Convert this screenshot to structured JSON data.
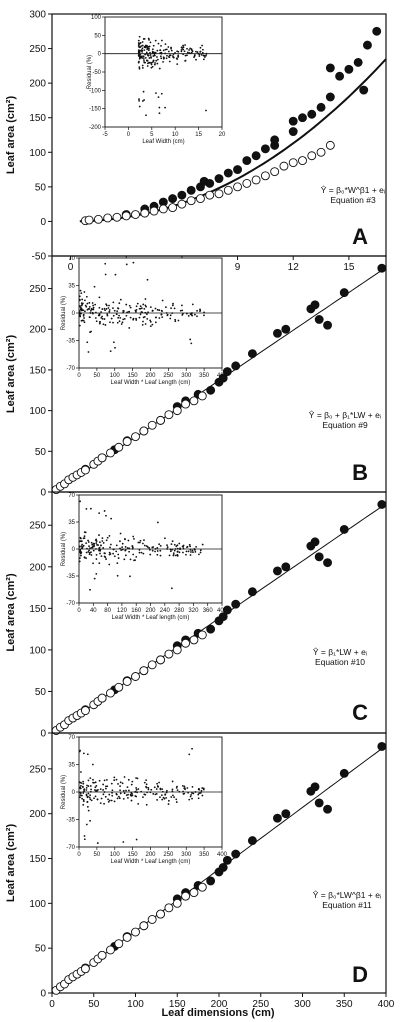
{
  "figure": {
    "xlabel": "Leaf dimensions (cm)"
  },
  "chart_data": [
    {
      "type": "scatter",
      "panel": "A",
      "ylabel": "Leaf area (cm²)",
      "equation": "Ŷ = β₀*W^β1 + eᵢ",
      "equation_number": "Equation #3",
      "xlim": [
        -1,
        17
      ],
      "ylim": [
        -50,
        300
      ],
      "xticks": [
        0,
        3,
        6,
        9,
        12,
        15
      ],
      "yticks": [
        -50,
        0,
        50,
        100,
        150,
        200,
        250,
        300
      ],
      "fit": {
        "form": "power",
        "coef": 0.612,
        "exp": 2.1,
        "x_range": [
          0.5,
          17
        ]
      },
      "series": [
        {
          "name": "",
          "marker": "filled",
          "points": [
            [
              3,
              10
            ],
            [
              4,
              18
            ],
            [
              4.5,
              22
            ],
            [
              5,
              28
            ],
            [
              5.5,
              33
            ],
            [
              6,
              38
            ],
            [
              6.5,
              45
            ],
            [
              7,
              50
            ],
            [
              7.2,
              58
            ],
            [
              7.5,
              55
            ],
            [
              8,
              62
            ],
            [
              8.5,
              70
            ],
            [
              9,
              75
            ],
            [
              9.5,
              88
            ],
            [
              10,
              95
            ],
            [
              10.5,
              105
            ],
            [
              11,
              110
            ],
            [
              11,
              118
            ],
            [
              12,
              145
            ],
            [
              12.5,
              150
            ],
            [
              12,
              130
            ],
            [
              13,
              155
            ],
            [
              13.5,
              165
            ],
            [
              14,
              180
            ],
            [
              14.5,
              210
            ],
            [
              15,
              220
            ],
            [
              16,
              255
            ],
            [
              16.5,
              275
            ],
            [
              15.5,
              230
            ],
            [
              15.8,
              190
            ],
            [
              14,
              222
            ]
          ]
        },
        {
          "name": "",
          "marker": "open",
          "points": [
            [
              0.8,
              1
            ],
            [
              1,
              2
            ],
            [
              1.5,
              3
            ],
            [
              2,
              5
            ],
            [
              2.5,
              6
            ],
            [
              3,
              8
            ],
            [
              3.5,
              10
            ],
            [
              4,
              12
            ],
            [
              4.5,
              15
            ],
            [
              5,
              18
            ],
            [
              5.5,
              20
            ],
            [
              6,
              25
            ],
            [
              6.5,
              30
            ],
            [
              7,
              33
            ],
            [
              7.5,
              38
            ],
            [
              8,
              40
            ],
            [
              8.5,
              45
            ],
            [
              9,
              50
            ],
            [
              9.5,
              55
            ],
            [
              10,
              60
            ],
            [
              10.5,
              66
            ],
            [
              11,
              72
            ],
            [
              11.5,
              80
            ],
            [
              12,
              85
            ],
            [
              12.5,
              88
            ],
            [
              13,
              95
            ],
            [
              13.5,
              100
            ],
            [
              14,
              110
            ]
          ]
        }
      ],
      "inset": {
        "ylabel": "Residual (%)",
        "xlabel": "Leaf Width (cm)",
        "xlim": [
          -5,
          20
        ],
        "ylim": [
          -200,
          100
        ],
        "xticks": [
          -5,
          0,
          5,
          10,
          15,
          20
        ],
        "yticks": [
          -200,
          -150,
          -100,
          -50,
          0,
          50,
          100
        ],
        "residual_x_range": [
          2.2,
          17
        ],
        "residual_spread": 45
      }
    },
    {
      "type": "scatter",
      "panel": "B",
      "ylabel": "Leaf area (cm²)",
      "equation": "Ŷ = β₀ + β₁*LW + eᵢ",
      "equation_number": "Equation #9",
      "xlim": [
        0,
        400
      ],
      "ylim": [
        0,
        290
      ],
      "xticks": [],
      "yticks": [
        0,
        50,
        100,
        150,
        200,
        250
      ],
      "fit": {
        "form": "linear",
        "intercept": -2,
        "slope": 0.695,
        "x_range": [
          0,
          400
        ]
      },
      "series": [
        {
          "name": "",
          "marker": "filled",
          "points": [
            [
              40,
              28
            ],
            [
              60,
              42
            ],
            [
              75,
              52
            ],
            [
              90,
              63
            ],
            [
              110,
              75
            ],
            [
              130,
              88
            ],
            [
              150,
              105
            ],
            [
              160,
              112
            ],
            [
              175,
              120
            ],
            [
              190,
              125
            ],
            [
              200,
              135
            ],
            [
              205,
              140
            ],
            [
              210,
              148
            ],
            [
              220,
              155
            ],
            [
              240,
              170
            ],
            [
              270,
              195
            ],
            [
              280,
              200
            ],
            [
              310,
              225
            ],
            [
              320,
              212
            ],
            [
              315,
              230
            ],
            [
              330,
              205
            ],
            [
              350,
              245
            ],
            [
              395,
              275
            ]
          ]
        },
        {
          "name": "",
          "marker": "open",
          "points": [
            [
              5,
              3
            ],
            [
              10,
              7
            ],
            [
              15,
              10
            ],
            [
              20,
              15
            ],
            [
              25,
              18
            ],
            [
              30,
              21
            ],
            [
              35,
              24
            ],
            [
              40,
              27
            ],
            [
              50,
              34
            ],
            [
              55,
              38
            ],
            [
              60,
              42
            ],
            [
              70,
              48
            ],
            [
              80,
              55
            ],
            [
              90,
              62
            ],
            [
              100,
              68
            ],
            [
              110,
              75
            ],
            [
              120,
              82
            ],
            [
              130,
              88
            ],
            [
              140,
              95
            ],
            [
              150,
              100
            ],
            [
              160,
              108
            ],
            [
              170,
              112
            ],
            [
              180,
              118
            ]
          ]
        }
      ],
      "inset": {
        "ylabel": "Residual (%)",
        "xlabel": "Leaf Width * Leaf Length (cm)",
        "xlim": [
          0,
          400
        ],
        "ylim": [
          -70,
          70
        ],
        "xticks": [
          0,
          50,
          100,
          150,
          200,
          250,
          300,
          350,
          400
        ],
        "yticks": [
          -70,
          -35,
          0,
          35,
          70
        ],
        "residual_x_range": [
          2,
          350
        ],
        "residual_spread": 22
      }
    },
    {
      "type": "scatter",
      "panel": "C",
      "ylabel": "Leaf area (cm²)",
      "equation": "Ŷ = β₁*LW + eᵢ",
      "equation_number": "Equation #10",
      "xlim": [
        0,
        400
      ],
      "ylim": [
        0,
        290
      ],
      "xticks": [],
      "yticks": [
        0,
        50,
        100,
        150,
        200,
        250
      ],
      "fit": {
        "form": "linear",
        "intercept": 0,
        "slope": 0.69,
        "x_range": [
          0,
          400
        ]
      },
      "series": [
        {
          "name": "",
          "marker": "filled",
          "points": [
            [
              40,
              28
            ],
            [
              60,
              42
            ],
            [
              75,
              52
            ],
            [
              90,
              63
            ],
            [
              110,
              75
            ],
            [
              130,
              88
            ],
            [
              150,
              105
            ],
            [
              160,
              112
            ],
            [
              175,
              120
            ],
            [
              190,
              125
            ],
            [
              200,
              135
            ],
            [
              205,
              140
            ],
            [
              210,
              148
            ],
            [
              220,
              155
            ],
            [
              240,
              170
            ],
            [
              270,
              195
            ],
            [
              280,
              200
            ],
            [
              310,
              225
            ],
            [
              320,
              212
            ],
            [
              315,
              230
            ],
            [
              330,
              205
            ],
            [
              350,
              245
            ],
            [
              395,
              275
            ]
          ]
        },
        {
          "name": "",
          "marker": "open",
          "points": [
            [
              5,
              3
            ],
            [
              10,
              7
            ],
            [
              15,
              10
            ],
            [
              20,
              15
            ],
            [
              25,
              18
            ],
            [
              30,
              21
            ],
            [
              35,
              24
            ],
            [
              40,
              27
            ],
            [
              50,
              34
            ],
            [
              55,
              38
            ],
            [
              60,
              42
            ],
            [
              70,
              48
            ],
            [
              80,
              55
            ],
            [
              90,
              62
            ],
            [
              100,
              68
            ],
            [
              110,
              75
            ],
            [
              120,
              82
            ],
            [
              130,
              88
            ],
            [
              140,
              95
            ],
            [
              150,
              100
            ],
            [
              160,
              108
            ],
            [
              170,
              112
            ],
            [
              180,
              118
            ]
          ]
        }
      ],
      "inset": {
        "ylabel": "Residual (%)",
        "xlabel": "Leaf Width * Leaf length (cm)",
        "xlim": [
          0,
          400
        ],
        "ylim": [
          -70,
          70
        ],
        "xticks": [
          0,
          40,
          80,
          120,
          160,
          200,
          240,
          280,
          320,
          360,
          400
        ],
        "yticks": [
          -70,
          -35,
          0,
          35,
          70
        ],
        "residual_x_range": [
          2,
          350
        ],
        "residual_spread": 22
      }
    },
    {
      "type": "scatter",
      "panel": "D",
      "ylabel": "Leaf area (cm²)",
      "equation": "Ŷ = β₀*LW^β1 + eᵢ",
      "equation_number": "Equation #11",
      "xlim": [
        0,
        400
      ],
      "ylim": [
        0,
        290
      ],
      "xticks": [
        0,
        50,
        100,
        150,
        200,
        250,
        300,
        350,
        400
      ],
      "yticks": [
        0,
        50,
        100,
        150,
        200,
        250
      ],
      "fit": {
        "form": "power",
        "coef": 0.69,
        "exp": 1.0,
        "x_range": [
          0.5,
          400
        ]
      },
      "series": [
        {
          "name": "",
          "marker": "filled",
          "points": [
            [
              40,
              28
            ],
            [
              60,
              42
            ],
            [
              75,
              52
            ],
            [
              90,
              63
            ],
            [
              110,
              75
            ],
            [
              130,
              88
            ],
            [
              150,
              105
            ],
            [
              160,
              112
            ],
            [
              175,
              120
            ],
            [
              190,
              125
            ],
            [
              200,
              135
            ],
            [
              205,
              140
            ],
            [
              210,
              148
            ],
            [
              220,
              155
            ],
            [
              240,
              170
            ],
            [
              270,
              195
            ],
            [
              280,
              200
            ],
            [
              310,
              225
            ],
            [
              320,
              212
            ],
            [
              315,
              230
            ],
            [
              330,
              205
            ],
            [
              350,
              245
            ],
            [
              395,
              275
            ]
          ]
        },
        {
          "name": "",
          "marker": "open",
          "points": [
            [
              5,
              3
            ],
            [
              10,
              7
            ],
            [
              15,
              10
            ],
            [
              20,
              15
            ],
            [
              25,
              18
            ],
            [
              30,
              21
            ],
            [
              35,
              24
            ],
            [
              40,
              27
            ],
            [
              50,
              34
            ],
            [
              55,
              38
            ],
            [
              60,
              42
            ],
            [
              70,
              48
            ],
            [
              80,
              55
            ],
            [
              90,
              62
            ],
            [
              100,
              68
            ],
            [
              110,
              75
            ],
            [
              120,
              82
            ],
            [
              130,
              88
            ],
            [
              140,
              95
            ],
            [
              150,
              100
            ],
            [
              160,
              108
            ],
            [
              170,
              112
            ],
            [
              180,
              118
            ]
          ]
        }
      ],
      "inset": {
        "ylabel": "Residual (%)",
        "xlabel": "Leaf Width * Leaf Length (cm)",
        "xlim": [
          0,
          400
        ],
        "ylim": [
          -70,
          70
        ],
        "xticks": [
          0,
          50,
          100,
          150,
          200,
          250,
          300,
          350,
          400
        ],
        "yticks": [
          -70,
          -35,
          0,
          35,
          70
        ],
        "residual_x_range": [
          2,
          350
        ],
        "residual_spread": 22
      }
    }
  ]
}
